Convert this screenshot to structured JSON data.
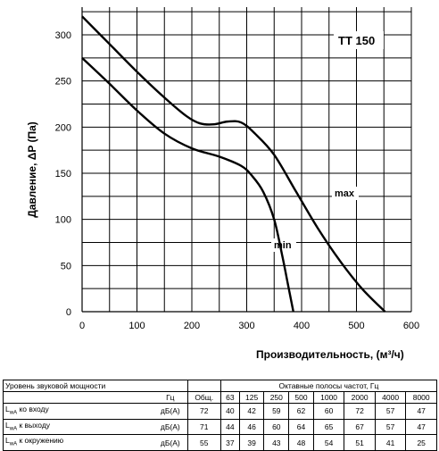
{
  "chart_data": {
    "type": "line",
    "title": "TT 150",
    "xlabel": "Производительность, (м³/ч)",
    "ylabel": "Давление, ΔP (Па)",
    "xlim": [
      0,
      600
    ],
    "ylim": [
      0,
      330
    ],
    "x_ticks": [
      "0",
      "100",
      "200",
      "300",
      "400",
      "500",
      "600"
    ],
    "y_ticks": [
      "0",
      "50",
      "100",
      "150",
      "200",
      "250",
      "300"
    ],
    "grid": true,
    "series": [
      {
        "name": "max",
        "x": [
          0,
          50,
          100,
          150,
          190,
          215,
          240,
          265,
          290,
          315,
          350,
          390,
          430,
          470,
          510,
          552
        ],
        "y": [
          320,
          290,
          260,
          232,
          212,
          204,
          203,
          206,
          205,
          193,
          170,
          130,
          90,
          55,
          25,
          0
        ]
      },
      {
        "name": "min",
        "x": [
          0,
          50,
          100,
          150,
          200,
          250,
          290,
          310,
          330,
          350,
          365,
          375,
          385
        ],
        "y": [
          275,
          247,
          218,
          193,
          177,
          168,
          158,
          147,
          130,
          100,
          60,
          30,
          0
        ]
      }
    ]
  },
  "table": {
    "title": "Уровень звуковой мощности",
    "band_title": "Октавные полосы частот, Гц",
    "unit_col": "Гц",
    "total_col": "Общ.",
    "bands": [
      "63",
      "125",
      "250",
      "500",
      "1000",
      "2000",
      "4000",
      "8000"
    ],
    "rows": [
      {
        "label_main": "L",
        "label_sub": "wA",
        "label_rest": " ко входу",
        "unit": "дБ(А)",
        "total": "72",
        "values": [
          "40",
          "42",
          "59",
          "62",
          "60",
          "72",
          "57",
          "47"
        ]
      },
      {
        "label_main": "L",
        "label_sub": "wA",
        "label_rest": " к выходу",
        "unit": "дБ(А)",
        "total": "71",
        "values": [
          "44",
          "46",
          "60",
          "64",
          "65",
          "67",
          "57",
          "47"
        ]
      },
      {
        "label_main": "L",
        "label_sub": "wA",
        "label_rest": " к окружению",
        "unit": "дБ(А)",
        "total": "55",
        "values": [
          "37",
          "39",
          "43",
          "48",
          "54",
          "51",
          "41",
          "25"
        ]
      }
    ]
  }
}
